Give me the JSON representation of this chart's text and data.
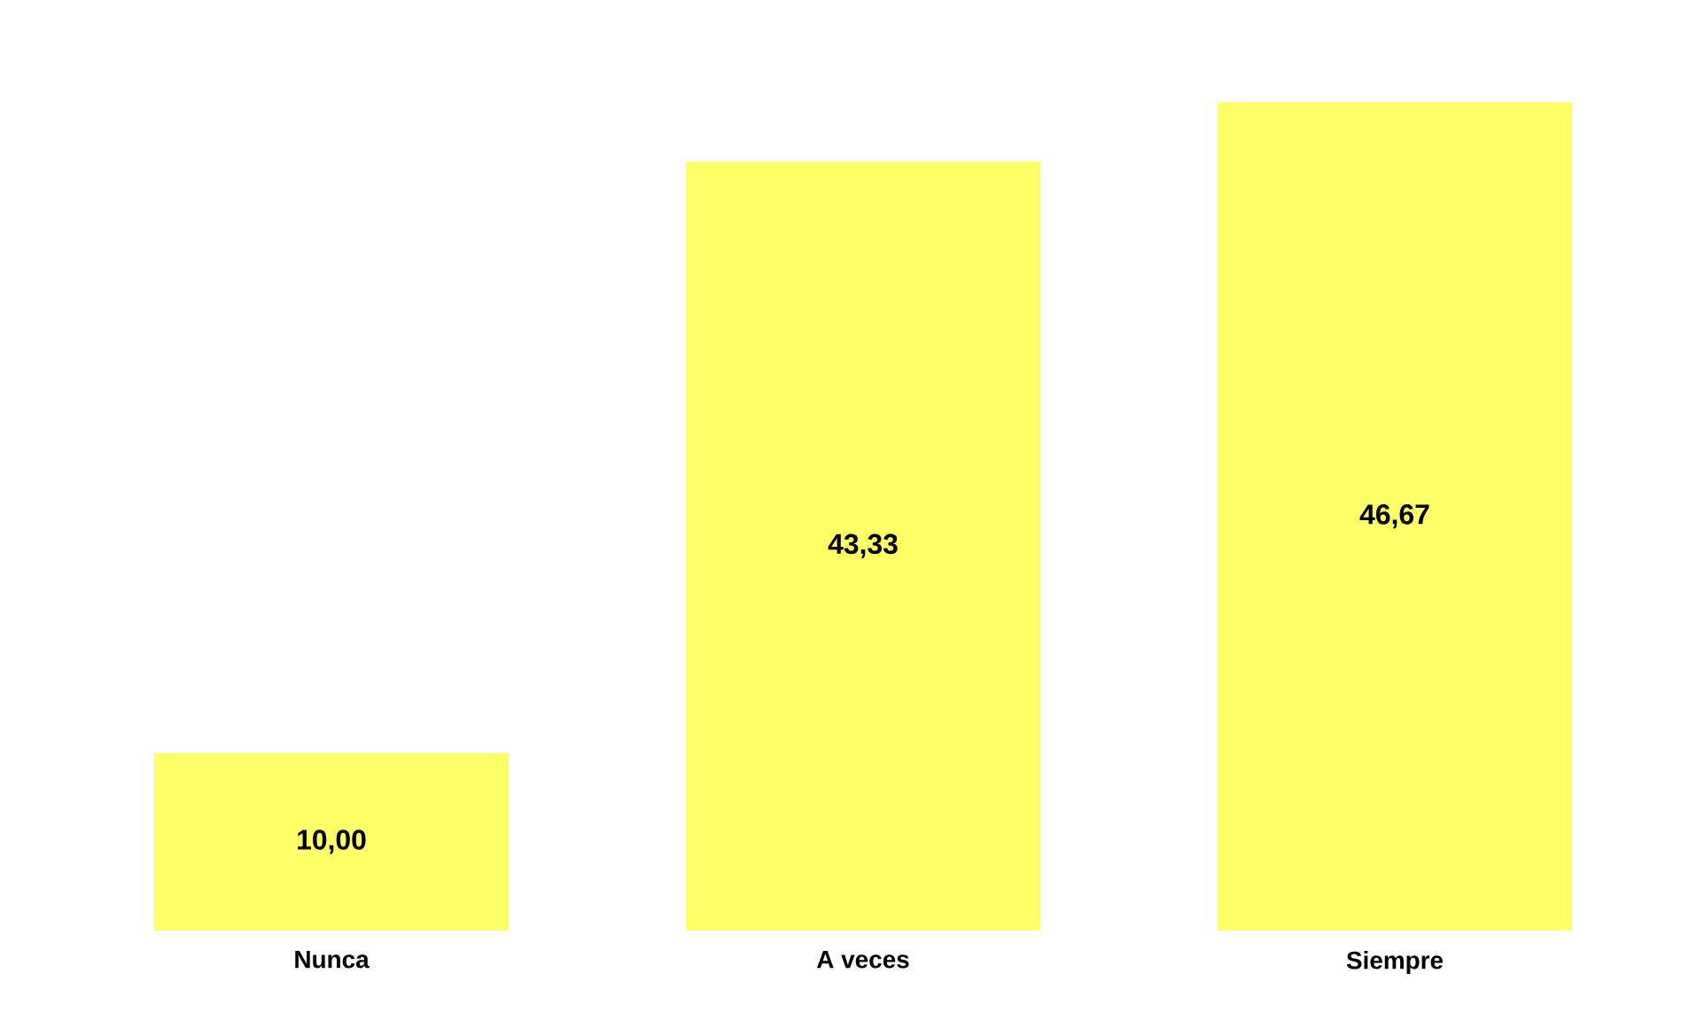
{
  "chart_data": {
    "type": "bar",
    "categories": [
      "Nunca",
      "A veces",
      "Siempre"
    ],
    "values": [
      10,
      43.33,
      46.67
    ],
    "value_labels": [
      "10,00",
      "43,33",
      "46,67"
    ],
    "color": "#ffff66"
  }
}
